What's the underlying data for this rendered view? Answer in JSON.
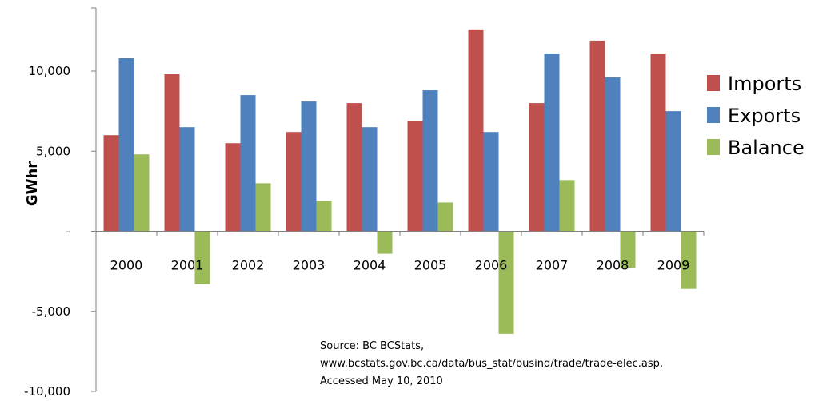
{
  "chart_data": {
    "type": "bar",
    "categories": [
      "2000",
      "2001",
      "2002",
      "2003",
      "2004",
      "2005",
      "2006",
      "2007",
      "2008",
      "2009"
    ],
    "series": [
      {
        "name": "Imports",
        "color": "#c0504d",
        "values": [
          6000,
          9800,
          5500,
          6200,
          8000,
          6900,
          12600,
          8000,
          11900,
          11100
        ]
      },
      {
        "name": "Exports",
        "color": "#4f81bd",
        "values": [
          10800,
          6500,
          8500,
          8100,
          6500,
          8800,
          6200,
          11100,
          9600,
          7500
        ]
      },
      {
        "name": "Balance",
        "color": "#9bbb59",
        "values": [
          4800,
          -3300,
          3000,
          1900,
          -1400,
          1800,
          -6400,
          3200,
          -2300,
          -3600
        ]
      }
    ],
    "ylabel": "GWhr",
    "ylim": [
      -10000,
      13000
    ],
    "yticks": [
      {
        "value": 10000,
        "label": "10,000"
      },
      {
        "value": 5000,
        "label": "5,000"
      },
      {
        "value": 0,
        "label": "-"
      },
      {
        "value": -5000,
        "label": "-5,000"
      },
      {
        "value": -10000,
        "label": "-10,000"
      }
    ],
    "legend_position": "right",
    "grid": false,
    "annotation": {
      "lines": [
        "Source: BC BCStats,",
        "www.bcstats.gov.bc.ca/data/bus_stat/busind/trade/trade-elec.asp,",
        "Accessed May 10, 2010"
      ]
    }
  }
}
